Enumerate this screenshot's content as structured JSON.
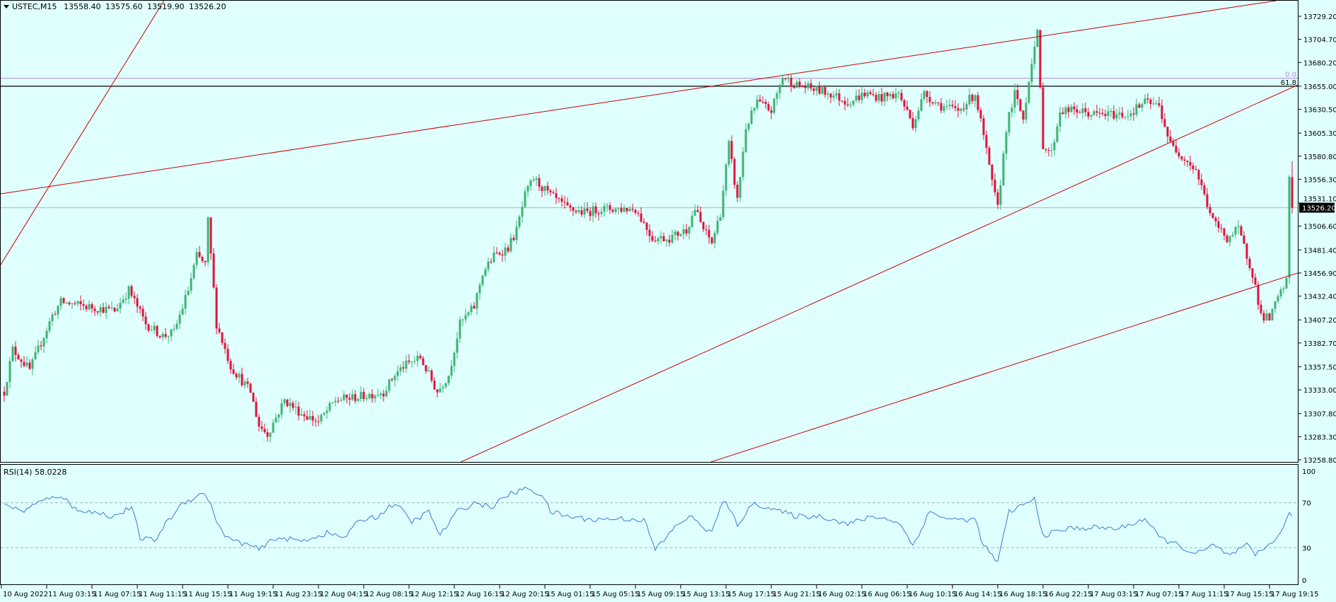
{
  "header": {
    "symbol": "USTEC,M15",
    "open": "13558.40",
    "high": "13575.60",
    "low": "13519.90",
    "close": "13526.20"
  },
  "colors": {
    "background": "#e0ffff",
    "bull": "#3cb371",
    "bear": "#dc143c",
    "trendline": "#cc0000",
    "rsi_line": "#3a7bd5",
    "fibo_0": "#b48cd2",
    "fibo_618": "#000000"
  },
  "fibo_labels": {
    "level_0": "0.0",
    "level_618": "61.8"
  },
  "current_price_label": "13526.20",
  "price_axis": [
    "13729.20",
    "13704.70",
    "13680.20",
    "13655.00",
    "13630.50",
    "13605.30",
    "13580.80",
    "13556.30",
    "13531.10",
    "13506.60",
    "13481.40",
    "13456.90",
    "13432.40",
    "13407.20",
    "13382.70",
    "13357.50",
    "13333.00",
    "13307.80",
    "13283.30",
    "13258.80"
  ],
  "time_axis": [
    "10 Aug 2022",
    "11 Aug 03:15",
    "11 Aug 07:15",
    "11 Aug 11:15",
    "11 Aug 15:15",
    "11 Aug 19:15",
    "11 Aug 23:15",
    "12 Aug 04:15",
    "12 Aug 08:15",
    "12 Aug 12:15",
    "12 Aug 16:15",
    "12 Aug 20:15",
    "15 Aug 01:15",
    "15 Aug 05:15",
    "15 Aug 09:15",
    "15 Aug 13:15",
    "15 Aug 17:15",
    "15 Aug 21:15",
    "16 Aug 02:15",
    "16 Aug 06:15",
    "16 Aug 10:15",
    "16 Aug 14:15",
    "16 Aug 18:15",
    "16 Aug 22:15",
    "17 Aug 03:15",
    "17 Aug 07:15",
    "17 Aug 11:15",
    "17 Aug 15:15",
    "17 Aug 19:15"
  ],
  "rsi": {
    "label": "RSI(14) 58.0228",
    "levels": [
      "100",
      "70",
      "30",
      "0"
    ]
  },
  "chart_data": {
    "type": "candlestick",
    "timeframe": "M15",
    "ylim": [
      13258.8,
      13729.2
    ],
    "bar_count": 456,
    "price_path": [
      [
        0,
        13331
      ],
      [
        3,
        13376
      ],
      [
        9,
        13354
      ],
      [
        17,
        13412
      ],
      [
        20,
        13426
      ],
      [
        30,
        13421
      ],
      [
        39,
        13417
      ],
      [
        44,
        13439
      ],
      [
        50,
        13403
      ],
      [
        56,
        13390
      ],
      [
        60,
        13394
      ],
      [
        65,
        13439
      ],
      [
        68,
        13475
      ],
      [
        71,
        13466
      ],
      [
        72,
        13512
      ],
      [
        75,
        13403
      ],
      [
        80,
        13358
      ],
      [
        87,
        13331
      ],
      [
        90,
        13295
      ],
      [
        93,
        13286
      ],
      [
        99,
        13322
      ],
      [
        105,
        13308
      ],
      [
        111,
        13299
      ],
      [
        117,
        13322
      ],
      [
        126,
        13326
      ],
      [
        134,
        13331
      ],
      [
        138,
        13349
      ],
      [
        141,
        13358
      ],
      [
        147,
        13367
      ],
      [
        150,
        13349
      ],
      [
        153,
        13331
      ],
      [
        157,
        13349
      ],
      [
        161,
        13403
      ],
      [
        166,
        13421
      ],
      [
        169,
        13457
      ],
      [
        173,
        13475
      ],
      [
        178,
        13484
      ],
      [
        181,
        13502
      ],
      [
        184,
        13539
      ],
      [
        187,
        13557
      ],
      [
        193,
        13539
      ],
      [
        199,
        13525
      ],
      [
        205,
        13521
      ],
      [
        211,
        13525
      ],
      [
        217,
        13525
      ],
      [
        223,
        13525
      ],
      [
        229,
        13494
      ],
      [
        235,
        13494
      ],
      [
        241,
        13503
      ],
      [
        244,
        13525
      ],
      [
        247,
        13503
      ],
      [
        250,
        13489
      ],
      [
        253,
        13521
      ],
      [
        256,
        13593
      ],
      [
        259,
        13534
      ],
      [
        262,
        13611
      ],
      [
        266,
        13638
      ],
      [
        271,
        13629
      ],
      [
        275,
        13665
      ],
      [
        280,
        13656
      ],
      [
        286,
        13652
      ],
      [
        292,
        13647
      ],
      [
        298,
        13638
      ],
      [
        304,
        13647
      ],
      [
        310,
        13643
      ],
      [
        316,
        13647
      ],
      [
        321,
        13615
      ],
      [
        325,
        13647
      ],
      [
        331,
        13634
      ],
      [
        337,
        13629
      ],
      [
        343,
        13647
      ],
      [
        346,
        13602
      ],
      [
        349,
        13552
      ],
      [
        351,
        13525
      ],
      [
        354,
        13611
      ],
      [
        357,
        13647
      ],
      [
        360,
        13620
      ],
      [
        363,
        13683
      ],
      [
        365,
        13710
      ],
      [
        367,
        13593
      ],
      [
        370,
        13584
      ],
      [
        373,
        13629
      ],
      [
        379,
        13629
      ],
      [
        385,
        13625
      ],
      [
        391,
        13625
      ],
      [
        397,
        13625
      ],
      [
        403,
        13638
      ],
      [
        408,
        13634
      ],
      [
        412,
        13593
      ],
      [
        417,
        13579
      ],
      [
        421,
        13566
      ],
      [
        427,
        13512
      ],
      [
        432,
        13494
      ],
      [
        436,
        13503
      ],
      [
        441,
        13457
      ],
      [
        444,
        13412
      ],
      [
        447,
        13408
      ],
      [
        450,
        13430
      ],
      [
        453,
        13448
      ],
      [
        454,
        13558.4
      ]
    ],
    "last_bar": {
      "open": 13558.4,
      "high": 13575.6,
      "low": 13519.9,
      "close": 13526.2
    },
    "rsi_ylim": [
      0,
      100
    ],
    "rsi_levels": [
      70,
      30
    ],
    "rsi_path": [
      [
        0,
        70
      ],
      [
        6,
        62
      ],
      [
        12,
        70
      ],
      [
        20,
        77
      ],
      [
        24,
        66
      ],
      [
        30,
        62
      ],
      [
        39,
        58
      ],
      [
        45,
        66
      ],
      [
        48,
        39
      ],
      [
        53,
        36
      ],
      [
        57,
        51
      ],
      [
        63,
        70
      ],
      [
        71,
        79
      ],
      [
        77,
        43
      ],
      [
        81,
        36
      ],
      [
        87,
        32
      ],
      [
        90,
        28
      ],
      [
        96,
        39
      ],
      [
        105,
        36
      ],
      [
        114,
        43
      ],
      [
        120,
        39
      ],
      [
        126,
        55
      ],
      [
        132,
        58
      ],
      [
        138,
        70
      ],
      [
        144,
        53
      ],
      [
        150,
        62
      ],
      [
        154,
        41
      ],
      [
        160,
        62
      ],
      [
        166,
        70
      ],
      [
        172,
        66
      ],
      [
        178,
        77
      ],
      [
        185,
        83
      ],
      [
        190,
        77
      ],
      [
        193,
        62
      ],
      [
        199,
        58
      ],
      [
        208,
        55
      ],
      [
        217,
        56
      ],
      [
        226,
        55
      ],
      [
        230,
        28
      ],
      [
        238,
        51
      ],
      [
        242,
        58
      ],
      [
        250,
        43
      ],
      [
        254,
        73
      ],
      [
        259,
        51
      ],
      [
        265,
        70
      ],
      [
        274,
        62
      ],
      [
        280,
        58
      ],
      [
        289,
        58
      ],
      [
        298,
        51
      ],
      [
        307,
        58
      ],
      [
        316,
        53
      ],
      [
        321,
        32
      ],
      [
        327,
        62
      ],
      [
        334,
        55
      ],
      [
        343,
        55
      ],
      [
        346,
        32
      ],
      [
        351,
        17
      ],
      [
        355,
        62
      ],
      [
        364,
        73
      ],
      [
        367,
        41
      ],
      [
        376,
        47
      ],
      [
        385,
        48
      ],
      [
        394,
        47
      ],
      [
        403,
        56
      ],
      [
        408,
        39
      ],
      [
        415,
        32
      ],
      [
        421,
        24
      ],
      [
        427,
        32
      ],
      [
        433,
        23
      ],
      [
        439,
        32
      ],
      [
        442,
        23
      ],
      [
        447,
        33
      ],
      [
        452,
        47
      ],
      [
        454,
        61
      ],
      [
        455,
        58.02
      ]
    ],
    "trendlines": [
      {
        "p1": [
          -1,
          13541
        ],
        "p2": [
          413,
          13729.2
        ]
      },
      {
        "p1": [
          -1,
          13467
        ],
        "p2": [
          53,
          13729.2
        ]
      },
      {
        "p1": [
          163,
          13258.8
        ],
        "p2": [
          456,
          13655
        ]
      },
      {
        "p1": [
          252,
          13258.8
        ],
        "p2": [
          456,
          13456
        ]
      }
    ],
    "fibo": {
      "level_0": 13663.5,
      "level_618": 13655.0
    }
  }
}
